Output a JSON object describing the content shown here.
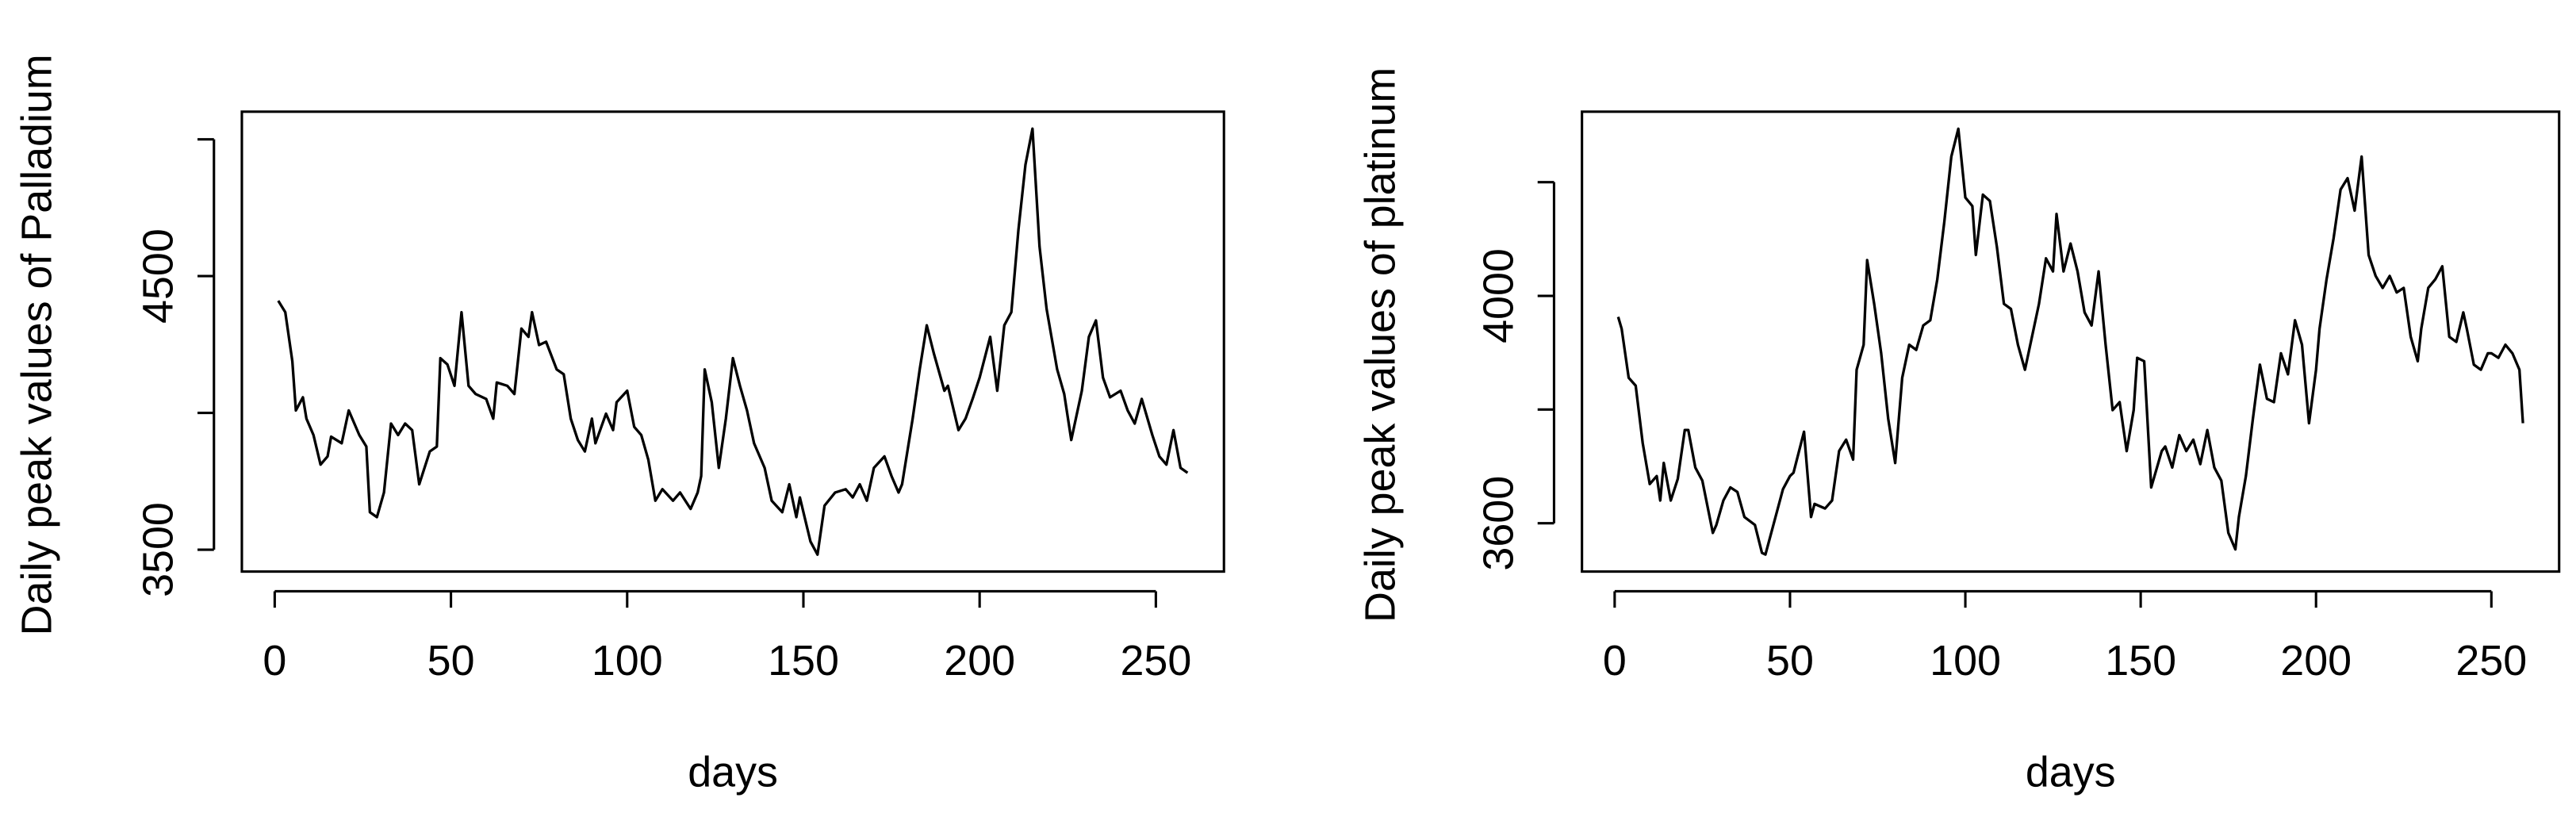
{
  "chart_data": [
    {
      "type": "line",
      "xlabel": "days",
      "ylabel": "Daily peak values of Palladium",
      "color": "#000000",
      "x": [
        1,
        3,
        5,
        6,
        8,
        9,
        11,
        13,
        15,
        16,
        19,
        21,
        24,
        26,
        27,
        29,
        31,
        33,
        35,
        37,
        39,
        41,
        44,
        46,
        47,
        49,
        51,
        53,
        55,
        57,
        60,
        62,
        63,
        66,
        68,
        70,
        72,
        73,
        75,
        77,
        80,
        82,
        84,
        86,
        88,
        90,
        91,
        94,
        96,
        97,
        100,
        102,
        104,
        106,
        108,
        110,
        113,
        115,
        118,
        120,
        121,
        122,
        124,
        126,
        128,
        130,
        132,
        134,
        136,
        139,
        141,
        144,
        146,
        148,
        149,
        152,
        154,
        156,
        159,
        162,
        164,
        166,
        168,
        170,
        173,
        175,
        177,
        178,
        181,
        183,
        185,
        187,
        190,
        191,
        194,
        196,
        198,
        200,
        203,
        205,
        207,
        209,
        211,
        213,
        215,
        217,
        219,
        222,
        224,
        226,
        229,
        231,
        233,
        235,
        237,
        240,
        242,
        244,
        246,
        249,
        251,
        253,
        255,
        257,
        259
      ],
      "values": [
        4410,
        4368,
        4189,
        4009,
        4057,
        3979,
        3919,
        3811,
        3841,
        3913,
        3889,
        4009,
        3919,
        3877,
        3637,
        3619,
        3709,
        3961,
        3919,
        3961,
        3937,
        3739,
        3859,
        3877,
        4200,
        4177,
        4099,
        4368,
        4099,
        4069,
        4051,
        3979,
        4111,
        4099,
        4069,
        4308,
        4278,
        4368,
        4248,
        4260,
        4159,
        4141,
        3979,
        3901,
        3859,
        3979,
        3889,
        3997,
        3937,
        4039,
        4081,
        3949,
        3919,
        3829,
        3679,
        3721,
        3679,
        3709,
        3649,
        3709,
        3769,
        4159,
        4039,
        3799,
        3979,
        4200,
        4099,
        4009,
        3889,
        3799,
        3679,
        3637,
        3739,
        3619,
        3691,
        3530,
        3482,
        3661,
        3709,
        3721,
        3691,
        3739,
        3679,
        3799,
        3841,
        3769,
        3709,
        3739,
        3979,
        4159,
        4320,
        4218,
        4081,
        4099,
        3937,
        3979,
        4051,
        4129,
        4278,
        4081,
        4320,
        4368,
        4668,
        4907,
        5039,
        4608,
        4380,
        4159,
        4069,
        3901,
        4081,
        4278,
        4338,
        4129,
        4057,
        4081,
        4009,
        3961,
        4051,
        3919,
        3841,
        3811,
        3937,
        3799,
        3781
      ],
      "xlim": [
        -9.32,
        269.32
      ],
      "ylim": [
        3420,
        5101
      ],
      "xticks": [
        0,
        50,
        100,
        150,
        200,
        250
      ],
      "yticks": [
        3500,
        4500
      ],
      "yticks_unlabeled": [
        4000,
        5000
      ]
    },
    {
      "type": "line",
      "xlabel": "days",
      "ylabel": "Daily peak values of platinum",
      "color": "#000000",
      "x": [
        1,
        2,
        4,
        6,
        8,
        10,
        12,
        13,
        14,
        16,
        18,
        20,
        21,
        23,
        25,
        28,
        29,
        31,
        33,
        35,
        37,
        40,
        42,
        43,
        45,
        48,
        50,
        51,
        54,
        56,
        57,
        60,
        62,
        64,
        66,
        68,
        69,
        71,
        72,
        74,
        76,
        78,
        80,
        82,
        84,
        86,
        88,
        90,
        92,
        94,
        96,
        98,
        100,
        102,
        103,
        105,
        107,
        109,
        111,
        113,
        115,
        117,
        119,
        121,
        123,
        125,
        126,
        128,
        130,
        132,
        134,
        136,
        138,
        140,
        142,
        144,
        146,
        148,
        149,
        151,
        153,
        156,
        157,
        159,
        161,
        163,
        165,
        167,
        169,
        171,
        173,
        175,
        177,
        178,
        180,
        182,
        184,
        186,
        188,
        190,
        192,
        194,
        196,
        198,
        200,
        201,
        203,
        205,
        207,
        209,
        211,
        213,
        215,
        217,
        219,
        221,
        223,
        225,
        227,
        229,
        230,
        232,
        234,
        236,
        238,
        240,
        242,
        243,
        245,
        247,
        249,
        250,
        252,
        254,
        256,
        258,
        259
      ],
      "values": [
        3963,
        3942,
        3856,
        3842,
        3741,
        3669,
        3683,
        3640,
        3706,
        3640,
        3678,
        3764,
        3764,
        3698,
        3675,
        3583,
        3597,
        3640,
        3663,
        3655,
        3611,
        3597,
        3548,
        3545,
        3591,
        3660,
        3683,
        3689,
        3761,
        3611,
        3634,
        3626,
        3640,
        3727,
        3747,
        3712,
        3870,
        3914,
        4063,
        3986,
        3899,
        3784,
        3706,
        3856,
        3914,
        3905,
        3948,
        3957,
        4029,
        4130,
        4245,
        4294,
        4173,
        4158,
        4072,
        4178,
        4167,
        4086,
        3986,
        3977,
        3914,
        3870,
        3928,
        3986,
        4066,
        4043,
        4144,
        4043,
        4092,
        4043,
        3971,
        3948,
        4043,
        3914,
        3799,
        3813,
        3727,
        3799,
        3891,
        3885,
        3663,
        3727,
        3735,
        3698,
        3755,
        3727,
        3747,
        3704,
        3764,
        3698,
        3675,
        3583,
        3554,
        3611,
        3683,
        3784,
        3879,
        3819,
        3813,
        3899,
        3862,
        3957,
        3914,
        3776,
        3870,
        3942,
        4029,
        4101,
        4187,
        4207,
        4150,
        4245,
        4072,
        4035,
        4014,
        4035,
        4006,
        4014,
        3928,
        3885,
        3942,
        4014,
        4029,
        4052,
        3928,
        3919,
        3971,
        3942,
        3879,
        3870,
        3899,
        3899,
        3891,
        3914,
        3899,
        3870,
        3776
      ],
      "xlim": [
        -9.32,
        269.32
      ],
      "ylim": [
        3515,
        4324
      ],
      "xticks": [
        0,
        50,
        100,
        150,
        200,
        250
      ],
      "yticks": [
        3600,
        4000
      ],
      "yticks_unlabeled": [
        3800,
        4200
      ]
    }
  ]
}
